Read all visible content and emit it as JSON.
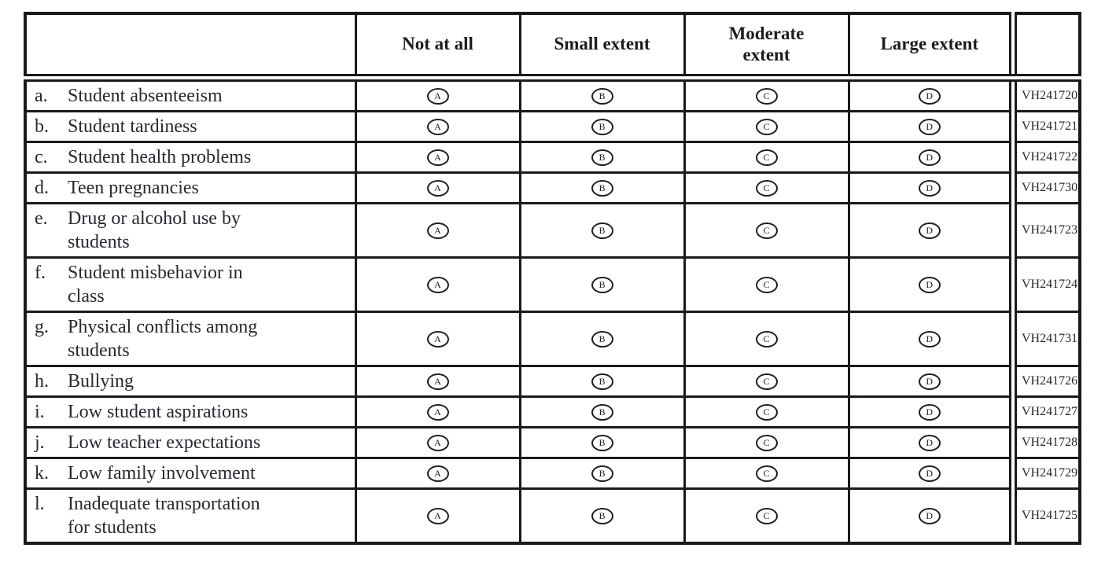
{
  "table": {
    "columns": [
      "",
      "Not at all",
      "Small extent",
      "Moderate extent",
      "Large extent",
      ""
    ],
    "options": [
      "A",
      "B",
      "C",
      "D"
    ],
    "rows": [
      {
        "letter": "a.",
        "text": "Student absenteeism",
        "code": "VH241720"
      },
      {
        "letter": "b.",
        "text": "Student tardiness",
        "code": "VH241721"
      },
      {
        "letter": "c.",
        "text": "Student health problems",
        "code": "VH241722"
      },
      {
        "letter": "d.",
        "text": "Teen pregnancies",
        "code": "VH241730"
      },
      {
        "letter": "e.",
        "text": "Drug or alcohol use by\nstudents",
        "code": "VH241723"
      },
      {
        "letter": "f.",
        "text": "Student misbehavior in\nclass",
        "code": "VH241724"
      },
      {
        "letter": "g.",
        "text": "Physical conflicts among\nstudents",
        "code": "VH241731"
      },
      {
        "letter": "h.",
        "text": "Bullying",
        "code": "VH241726"
      },
      {
        "letter": "i.",
        "text": "Low student aspirations",
        "code": "VH241727"
      },
      {
        "letter": "j.",
        "text": "Low teacher expectations",
        "code": "VH241728"
      },
      {
        "letter": "k.",
        "text": "Low family involvement",
        "code": "VH241729"
      },
      {
        "letter": "l.",
        "text": "Inadequate transportation\nfor students",
        "code": "VH241725"
      }
    ],
    "colors": {
      "border": "#1d191a",
      "text": "#2a2730"
    }
  }
}
